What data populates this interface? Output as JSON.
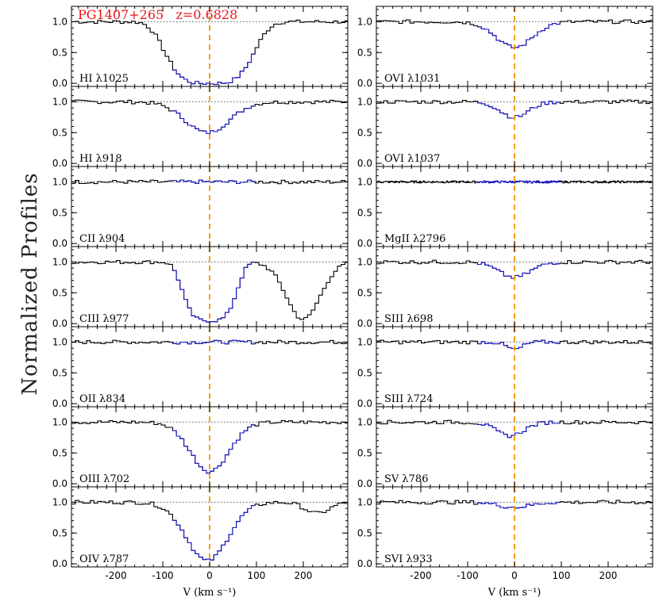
{
  "chart_data": {
    "type": "line",
    "title": "PG1407+265   z=0.6828",
    "ylabel": "Normalized Profiles",
    "xlabel": "V (km s⁻¹)",
    "x_ticks": [
      -200,
      -100,
      0,
      100,
      200
    ],
    "y_ticks": [
      "0.0",
      "0.5",
      "1.0"
    ],
    "xlim": [
      -295,
      295
    ],
    "ylim": [
      -0.05,
      1.25
    ],
    "continuum": 1.0,
    "velocity_marker": 0,
    "integration_window": [
      -80,
      100
    ],
    "colors": {
      "title": "#e8141a",
      "marker": "#f5a01a",
      "window": "#1a1acc",
      "spectrum": "#000000",
      "continuum": "#555555"
    },
    "panels": [
      {
        "column": "left",
        "row": 0,
        "label": "HI λ1025",
        "bin": 8,
        "features": [
          {
            "center": 0,
            "depth": 1.0,
            "width": 95,
            "shape": "flat"
          }
        ]
      },
      {
        "column": "left",
        "row": 1,
        "label": "HI λ918",
        "bin": 8,
        "features": [
          {
            "center": -5,
            "depth": 0.5,
            "width": 55,
            "shape": "gauss"
          }
        ]
      },
      {
        "column": "left",
        "row": 2,
        "label": "CII λ904",
        "bin": 8,
        "features": []
      },
      {
        "column": "left",
        "row": 3,
        "label": "CIII λ977",
        "bin": 8,
        "features": [
          {
            "center": 0,
            "depth": 0.95,
            "width": 58,
            "shape": "flat"
          },
          {
            "center": 200,
            "depth": 0.93,
            "width": 42,
            "shape": "gauss"
          }
        ]
      },
      {
        "column": "left",
        "row": 4,
        "label": "OII λ834",
        "bin": 8,
        "features": []
      },
      {
        "column": "left",
        "row": 5,
        "label": "OIII λ702",
        "bin": 8,
        "features": [
          {
            "center": 0,
            "depth": 0.8,
            "width": 48,
            "shape": "gauss"
          }
        ]
      },
      {
        "column": "left",
        "row": 6,
        "label": "OIV λ787",
        "bin": 8,
        "features": [
          {
            "center": -5,
            "depth": 0.95,
            "width": 52,
            "shape": "gauss"
          },
          {
            "center": 230,
            "depth": 0.18,
            "width": 30,
            "shape": "gauss"
          }
        ]
      },
      {
        "column": "right",
        "row": 0,
        "label": "OVI λ1031",
        "bin": 8,
        "features": [
          {
            "center": 0,
            "depth": 0.42,
            "width": 45,
            "shape": "gauss"
          }
        ]
      },
      {
        "column": "right",
        "row": 1,
        "label": "OVI λ1037",
        "bin": 8,
        "features": [
          {
            "center": 0,
            "depth": 0.25,
            "width": 35,
            "shape": "gauss"
          }
        ]
      },
      {
        "column": "right",
        "row": 2,
        "label": "MgII λ2796",
        "bin": 2,
        "features": []
      },
      {
        "column": "right",
        "row": 3,
        "label": "SIII λ698",
        "bin": 8,
        "features": [
          {
            "center": 0,
            "depth": 0.25,
            "width": 40,
            "shape": "gauss"
          }
        ]
      },
      {
        "column": "right",
        "row": 4,
        "label": "SIII λ724",
        "bin": 8,
        "features": [
          {
            "center": 0,
            "depth": 0.12,
            "width": 20,
            "shape": "gauss"
          }
        ]
      },
      {
        "column": "right",
        "row": 5,
        "label": "SV λ786",
        "bin": 8,
        "features": [
          {
            "center": -10,
            "depth": 0.22,
            "width": 35,
            "shape": "gauss"
          }
        ]
      },
      {
        "column": "right",
        "row": 6,
        "label": "SVI λ933",
        "bin": 8,
        "features": [
          {
            "center": 0,
            "depth": 0.08,
            "width": 40,
            "shape": "gauss"
          }
        ]
      }
    ]
  }
}
